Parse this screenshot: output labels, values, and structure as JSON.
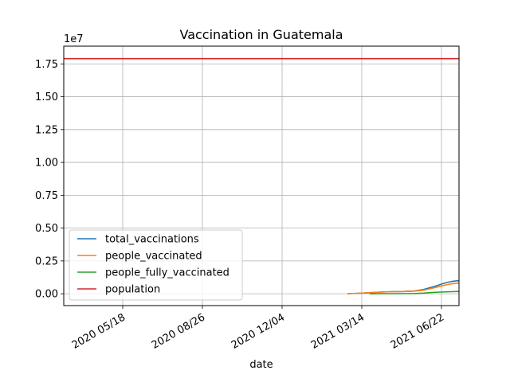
{
  "chart_data": {
    "type": "line",
    "title": "Vaccination in Guatemala",
    "xlabel": "date",
    "ylabel": "",
    "y_multiplier_label": "1e7",
    "x_range": [
      "2020-03-05",
      "2021-07-14"
    ],
    "ylim": [
      -0.09,
      1.885
    ],
    "y_unit_scale": 10000000.0,
    "grid": true,
    "legend_position": "lower-left",
    "x_ticks": [
      {
        "date": "2020-05-18",
        "label": "2020 05/18"
      },
      {
        "date": "2020-08-26",
        "label": "2020 08/26"
      },
      {
        "date": "2020-12-04",
        "label": "2020 12/04"
      },
      {
        "date": "2021-03-14",
        "label": "2021 03/14"
      },
      {
        "date": "2021-06-22",
        "label": "2021 06/22"
      }
    ],
    "y_ticks": [
      {
        "value": 0,
        "label": "0.00"
      },
      {
        "value": 0.25,
        "label": "0.25"
      },
      {
        "value": 0.5,
        "label": "0.50"
      },
      {
        "value": 0.75,
        "label": "0.75"
      },
      {
        "value": 1.0,
        "label": "1.00"
      },
      {
        "value": 1.25,
        "label": "1.25"
      },
      {
        "value": 1.5,
        "label": "1.50"
      },
      {
        "value": 1.75,
        "label": "1.75"
      }
    ],
    "series": [
      {
        "name": "total_vaccinations",
        "color": "#1f77b4",
        "points": [
          [
            "2021-02-24",
            0.001
          ],
          [
            "2021-03-10",
            0.004
          ],
          [
            "2021-03-24",
            0.008
          ],
          [
            "2021-04-07",
            0.013
          ],
          [
            "2021-04-21",
            0.016
          ],
          [
            "2021-05-05",
            0.017
          ],
          [
            "2021-05-19",
            0.021
          ],
          [
            "2021-05-31",
            0.033
          ],
          [
            "2021-06-07",
            0.046
          ],
          [
            "2021-06-14",
            0.058
          ],
          [
            "2021-06-21",
            0.071
          ],
          [
            "2021-06-28",
            0.085
          ],
          [
            "2021-07-05",
            0.094
          ],
          [
            "2021-07-14",
            0.1
          ]
        ]
      },
      {
        "name": "people_vaccinated",
        "color": "#ff7f0e",
        "points": [
          [
            "2021-02-24",
            0.001
          ],
          [
            "2021-03-10",
            0.004
          ],
          [
            "2021-03-24",
            0.008
          ],
          [
            "2021-04-07",
            0.013
          ],
          [
            "2021-04-21",
            0.016
          ],
          [
            "2021-05-05",
            0.017
          ],
          [
            "2021-05-19",
            0.02
          ],
          [
            "2021-05-31",
            0.028
          ],
          [
            "2021-06-07",
            0.037
          ],
          [
            "2021-06-14",
            0.047
          ],
          [
            "2021-06-21",
            0.057
          ],
          [
            "2021-06-28",
            0.068
          ],
          [
            "2021-07-05",
            0.076
          ],
          [
            "2021-07-14",
            0.082
          ]
        ]
      },
      {
        "name": "people_fully_vaccinated",
        "color": "#2ca02c",
        "points": [
          [
            "2021-03-24",
            0.0
          ],
          [
            "2021-04-21",
            0.001
          ],
          [
            "2021-05-19",
            0.002
          ],
          [
            "2021-05-31",
            0.005
          ],
          [
            "2021-06-07",
            0.009
          ],
          [
            "2021-06-21",
            0.013
          ],
          [
            "2021-07-05",
            0.016
          ],
          [
            "2021-07-14",
            0.018
          ]
        ]
      },
      {
        "name": "population",
        "color": "#d62728",
        "points": [
          [
            "2020-03-05",
            1.79
          ],
          [
            "2021-07-14",
            1.79
          ]
        ]
      }
    ]
  }
}
